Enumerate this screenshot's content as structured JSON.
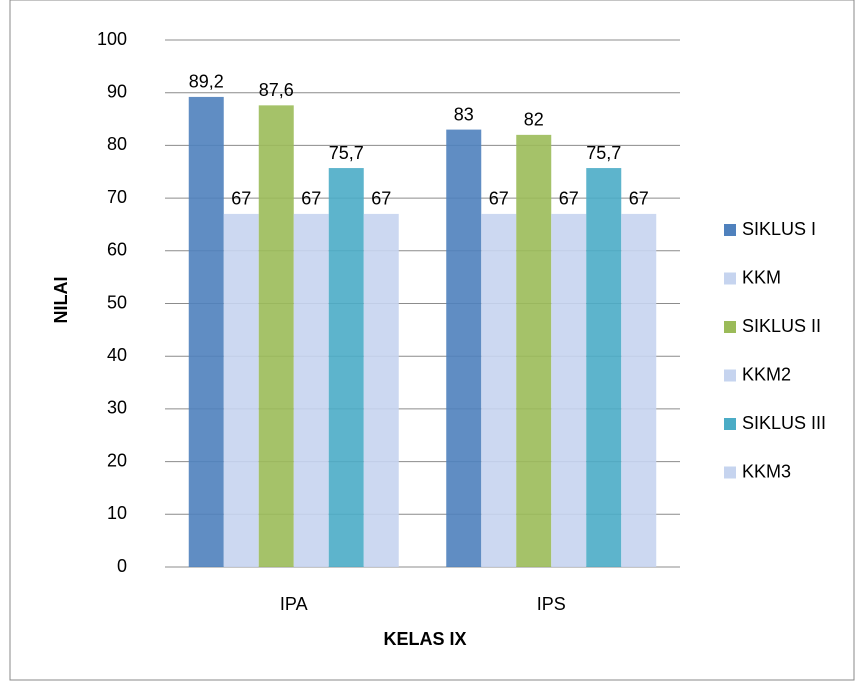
{
  "chart_data": {
    "type": "bar",
    "categories": [
      "IPA",
      "IPS"
    ],
    "x_label": "KELAS IX",
    "y_label": "NILAI",
    "ylim": [
      0,
      100
    ],
    "yticks": [
      0,
      10,
      20,
      30,
      40,
      50,
      60,
      70,
      80,
      90,
      100
    ],
    "grid": true,
    "legend": "right",
    "series": [
      {
        "name": "SIKLUS I",
        "color": "#4f81bd",
        "values": [
          89.2,
          83
        ],
        "value_labels": [
          "89,2",
          "83"
        ]
      },
      {
        "name": "KKM",
        "color": "#c6d4ef",
        "values": [
          67,
          67
        ],
        "value_labels": [
          "67",
          "67"
        ]
      },
      {
        "name": "SIKLUS II",
        "color": "#9bbb59",
        "values": [
          87.6,
          82
        ],
        "value_labels": [
          "87,6",
          "82"
        ]
      },
      {
        "name": "KKM2",
        "color": "#c6d4ef",
        "values": [
          67,
          67
        ],
        "value_labels": [
          "67",
          "67"
        ]
      },
      {
        "name": "SIKLUS III",
        "color": "#4bacc6",
        "values": [
          75.7,
          75.7
        ],
        "value_labels": [
          "75,7",
          "75,7"
        ]
      },
      {
        "name": "KKM3",
        "color": "#c6d4ef",
        "values": [
          67,
          67
        ],
        "value_labels": [
          "67",
          "67"
        ]
      }
    ]
  }
}
